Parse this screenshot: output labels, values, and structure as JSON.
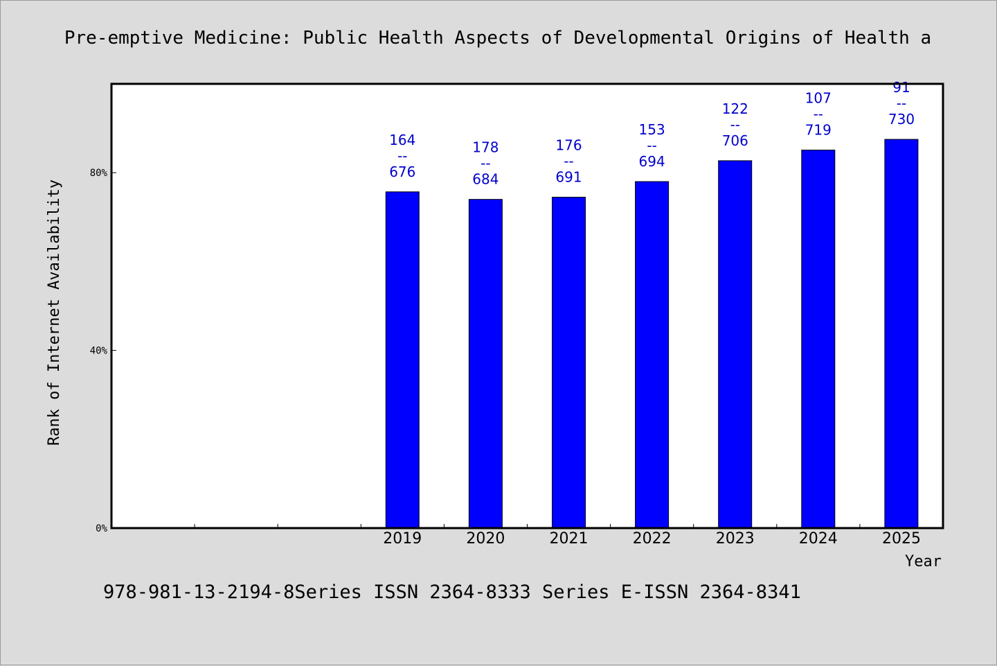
{
  "chart_data": {
    "type": "bar",
    "title": "Pre-emptive Medicine: Public Health Aspects of Developmental Origins of Health a",
    "xlabel": "Year",
    "ylabel": "Rank of Internet Availability",
    "footer": "978-981-13-2194-8Series ISSN 2364-8333 Series E-ISSN 2364-8341",
    "categories": [
      "",
      "",
      "",
      "2019",
      "2020",
      "2021",
      "2022",
      "2023",
      "2024",
      "2025"
    ],
    "values": [
      null,
      null,
      null,
      75.7,
      74.0,
      74.5,
      78.0,
      82.7,
      85.1,
      87.5
    ],
    "bar_labels": [
      null,
      null,
      null,
      [
        "164",
        "--",
        "676"
      ],
      [
        "178",
        "--",
        "684"
      ],
      [
        "176",
        "--",
        "691"
      ],
      [
        "153",
        "--",
        "694"
      ],
      [
        "122",
        "--",
        "706"
      ],
      [
        "107",
        "--",
        "719"
      ],
      [
        "91",
        "--",
        "730"
      ]
    ],
    "yticks": [
      0,
      40,
      80
    ],
    "ytick_labels": [
      "0%",
      "40%",
      "80%"
    ],
    "ylim": [
      0,
      100
    ],
    "grid": false,
    "legend": "none",
    "colors": {
      "bar": "#0000ff",
      "bar_edge": "#000000",
      "data_label": "#0000cc",
      "background": "#dcdcdc",
      "plot_area": "#ffffff"
    }
  }
}
